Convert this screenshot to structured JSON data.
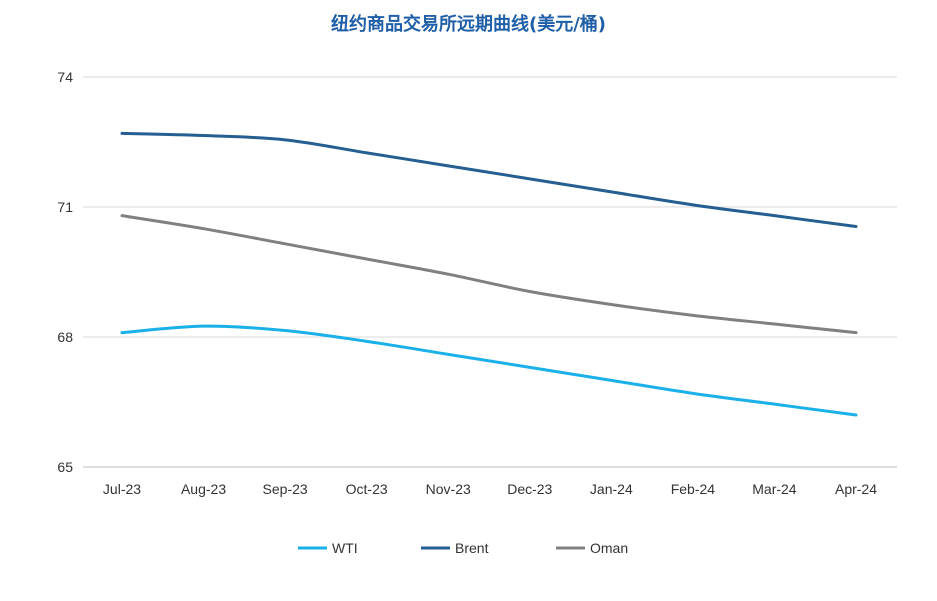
{
  "chart_data": {
    "type": "line",
    "title": "纽约商品交易所远期曲线(美元/桶)",
    "categories": [
      "Jul-23",
      "Aug-23",
      "Sep-23",
      "Oct-23",
      "Nov-23",
      "Dec-23",
      "Jan-24",
      "Feb-24",
      "Mar-24",
      "Apr-24"
    ],
    "ylim": [
      65,
      74
    ],
    "yticks": [
      "65",
      "68",
      "71",
      "74"
    ],
    "grid": true,
    "legend_position": "bottom",
    "series": [
      {
        "name": "WTI",
        "color": "#1ab0e8",
        "values": [
          68.1,
          68.25,
          68.15,
          67.9,
          67.6,
          67.3,
          67.0,
          66.7,
          66.45,
          66.2
        ]
      },
      {
        "name": "Brent",
        "color": "#255e91",
        "values": [
          72.7,
          72.65,
          72.55,
          72.25,
          71.95,
          71.65,
          71.35,
          71.05,
          70.8,
          70.55
        ]
      },
      {
        "name": "Oman",
        "color": "#808080",
        "values": [
          70.8,
          70.5,
          70.15,
          69.8,
          69.45,
          69.05,
          68.75,
          68.5,
          68.3,
          68.1
        ]
      }
    ]
  }
}
